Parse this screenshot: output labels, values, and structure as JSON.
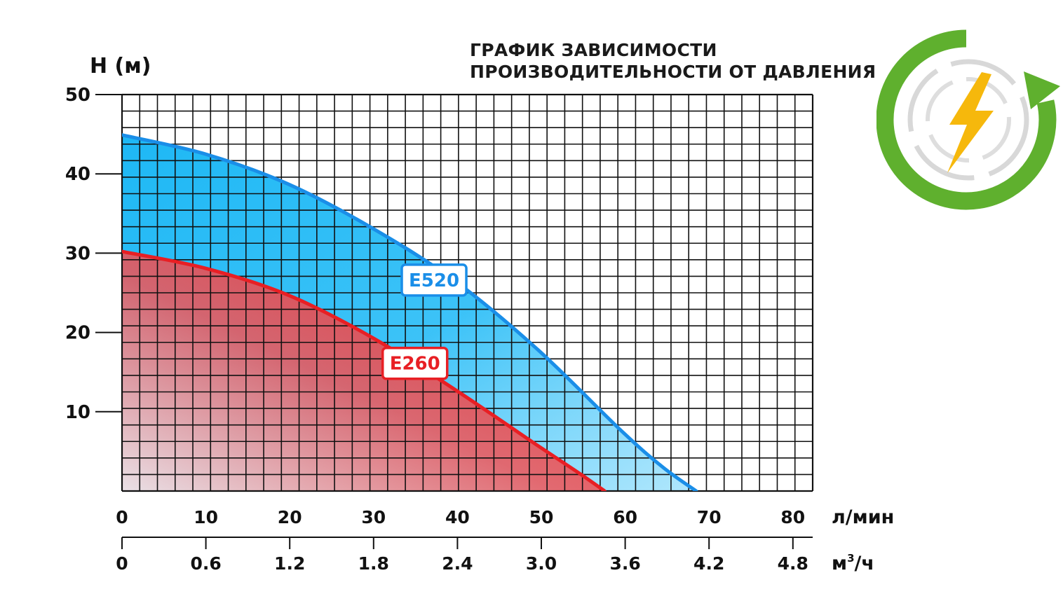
{
  "title_lines": [
    "ГРАФИК ЗАВИСИМОСТИ",
    "ПРОИЗВОДИТЕЛЬНОСТИ ОТ ДАВЛЕНИЯ"
  ],
  "logo": {
    "icon": "green-cycle-lightning-icon",
    "colors": {
      "ring": "#5fb02e",
      "bolt": "#f6b80c",
      "dash": "#d8d8d8"
    }
  },
  "chart_data": {
    "type": "area",
    "ylabel": "H (м)",
    "ylim": [
      0,
      50
    ],
    "y_ticks": [
      10,
      20,
      30,
      40,
      50
    ],
    "xlim": [
      0,
      83
    ],
    "x_axis_primary": {
      "unit": "л/мин",
      "ticks": [
        0,
        10,
        20,
        30,
        40,
        50,
        60,
        70,
        80
      ],
      "tick_labels": [
        "0",
        "10",
        "20",
        "30",
        "40",
        "50",
        "60",
        "70",
        "80"
      ]
    },
    "x_axis_secondary": {
      "unit": "м³/ч",
      "unit_base": "м",
      "unit_sup": "3",
      "unit_tail": "/ч",
      "tick_labels": [
        "0",
        "0.6",
        "1.2",
        "1.8",
        "2.4",
        "3.0",
        "3.6",
        "4.2",
        "4.8"
      ]
    },
    "grid": true,
    "series": [
      {
        "name": "E520",
        "color": "#1a8ee8",
        "fill": "#12b4f4",
        "x": [
          0,
          10,
          20,
          30,
          40,
          50,
          60,
          65,
          69
        ],
        "y": [
          44.9,
          42.5,
          38.7,
          33.2,
          26.5,
          17.8,
          7.6,
          3.0,
          0
        ]
      },
      {
        "name": "E260",
        "color": "#e81f24",
        "fill": "#ee2a2a",
        "x": [
          0,
          10,
          20,
          30,
          40,
          50,
          55,
          58
        ],
        "y": [
          30.2,
          28.1,
          24.7,
          19.4,
          12.8,
          5.7,
          2.2,
          0
        ]
      }
    ],
    "series_labels": [
      {
        "series": "E520",
        "at_x": 37.5,
        "at_y": 26.6
      },
      {
        "series": "E260",
        "at_x": 35.2,
        "at_y": 16.1
      }
    ]
  }
}
